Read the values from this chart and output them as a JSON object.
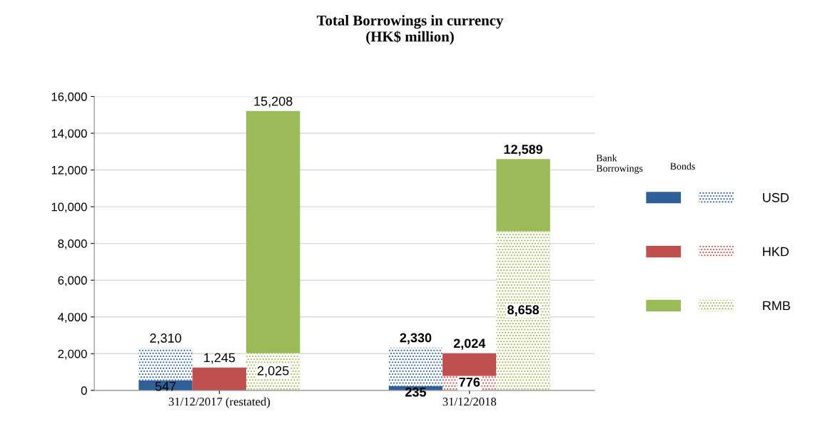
{
  "chart_data": {
    "type": "bar",
    "title": "Total Borrowings in currency\n(HK$ million)",
    "categories": [
      "31/12/2017 (restated)",
      "31/12/2018"
    ],
    "series": [
      {
        "color": "#2f5f98",
        "values": [
          547,
          235
        ],
        "base": [
          0,
          0
        ],
        "value_labels": [
          "547",
          "235"
        ]
      },
      {
        "name": "USD",
        "color": "#2f5f98",
        "line_style": "dotted",
        "values": [
          1763,
          2095
        ],
        "base": [
          547,
          235
        ],
        "value_labels": [
          "2,310",
          "2,330"
        ]
      },
      {
        "color": "#c0504d",
        "values": [
          1245,
          1248
        ],
        "base": [
          0,
          776
        ],
        "value_labels": [
          "1,245",
          "2,024"
        ]
      },
      {
        "name": "HKD",
        "color": "#c0504d",
        "line_style": "dotted",
        "values": [
          null,
          776
        ],
        "base": [
          null,
          0
        ],
        "value_labels": [
          null,
          "776"
        ]
      },
      {
        "color": "#9bbb59",
        "values": [
          13183,
          3931
        ],
        "base": [
          2025,
          8658
        ],
        "value_labels": [
          "15,208",
          "12,589"
        ]
      },
      {
        "name": "RMB",
        "color": "#9bbb59",
        "line_style": "dotted",
        "values": [
          2025,
          8658
        ],
        "base": [
          0,
          0
        ],
        "value_labels": [
          "2,025",
          "8,658"
        ]
      }
    ],
    "ylim": [
      0,
      16000
    ],
    "yticks": [
      {
        "value": 0,
        "label": "0"
      },
      {
        "value": 2000,
        "label": "2,000"
      },
      {
        "value": 4000,
        "label": "4,000"
      },
      {
        "value": 6000,
        "label": "6,000"
      },
      {
        "value": 8000,
        "label": "8,000"
      },
      {
        "value": 10000,
        "label": "10,000"
      },
      {
        "value": 12000,
        "label": "12,000"
      },
      {
        "value": 14000,
        "label": "14,000"
      },
      {
        "value": 16000,
        "label": "16,000"
      }
    ],
    "grid": "y",
    "legend": "right",
    "annotations": [
      "Bank\nBorrowings",
      "Bonds"
    ]
  }
}
